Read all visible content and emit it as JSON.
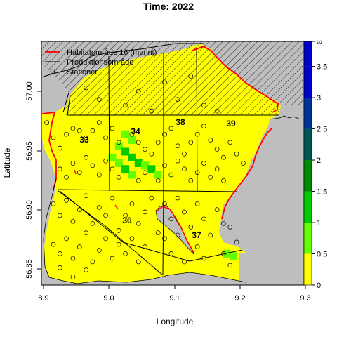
{
  "title": "Time: 2022",
  "xlabel": "Longitude",
  "ylabel": "Latitude",
  "x_ticks": [
    "8.9",
    "9.0",
    "9.1",
    "9.2",
    "9.3"
  ],
  "y_ticks": [
    "56.85",
    "56.90",
    "56.95",
    "57.00"
  ],
  "colorbar_ticks": [
    "0",
    "0.5",
    "1",
    "1.5",
    "2",
    "2.5",
    "3",
    "3.5",
    "∞"
  ],
  "legend": {
    "habitat": "Habitatområde 16 (marint)",
    "production": "Produktionsområde",
    "stations": "Stationer"
  },
  "areas": [
    "33",
    "34",
    "36",
    "37",
    "38",
    "39"
  ],
  "colors": {
    "land": "#bebebe",
    "water": "#ffff00",
    "habitat_line": "#ff0000",
    "production_line": "#000000",
    "scale": [
      "#ffff00",
      "#66ff00",
      "#00cc00",
      "#008800",
      "#005555",
      "#003399",
      "#0000cc",
      "#0000cc"
    ]
  },
  "chart_data": {
    "type": "heatmap",
    "xlim": [
      8.9,
      9.3
    ],
    "ylim": [
      56.835,
      57.045
    ],
    "colorbar_range": [
      0,
      3.9
    ],
    "high_density_cells": [
      {
        "lon": 9.025,
        "lat": 56.965,
        "value": 0.8
      },
      {
        "lon": 9.035,
        "lat": 56.96,
        "value": 0.8
      },
      {
        "lon": 9.015,
        "lat": 56.955,
        "value": 0.8
      },
      {
        "lon": 9.025,
        "lat": 56.95,
        "value": 1.3
      },
      {
        "lon": 9.035,
        "lat": 56.945,
        "value": 1.3
      },
      {
        "lon": 9.045,
        "lat": 56.94,
        "value": 1.3
      },
      {
        "lon": 9.055,
        "lat": 56.938,
        "value": 0.8
      },
      {
        "lon": 9.065,
        "lat": 56.935,
        "value": 1.3
      },
      {
        "lon": 9.005,
        "lat": 56.945,
        "value": 0.8
      },
      {
        "lon": 9.015,
        "lat": 56.94,
        "value": 0.8
      },
      {
        "lon": 9.035,
        "lat": 56.93,
        "value": 0.8
      },
      {
        "lon": 9.025,
        "lat": 56.935,
        "value": 1.3
      },
      {
        "lon": 9.075,
        "lat": 56.93,
        "value": 0.8
      },
      {
        "lon": 9.18,
        "lat": 56.862,
        "value": 0.8
      },
      {
        "lon": 9.19,
        "lat": 56.86,
        "value": 0.8
      }
    ],
    "stations": [
      [
        8.905,
        56.975
      ],
      [
        8.915,
        56.962
      ],
      [
        8.925,
        56.953
      ],
      [
        8.935,
        56.965
      ],
      [
        8.945,
        56.97
      ],
      [
        8.955,
        56.968
      ],
      [
        8.965,
        56.962
      ],
      [
        8.975,
        56.968
      ],
      [
        8.985,
        56.975
      ],
      [
        8.995,
        56.962
      ],
      [
        9.005,
        56.97
      ],
      [
        9.015,
        56.958
      ],
      [
        9.035,
        56.965
      ],
      [
        9.045,
        56.958
      ],
      [
        9.055,
        56.952
      ],
      [
        9.065,
        56.948
      ],
      [
        9.075,
        56.958
      ],
      [
        9.085,
        56.965
      ],
      [
        9.095,
        56.97
      ],
      [
        9.105,
        56.955
      ],
      [
        9.115,
        56.948
      ],
      [
        9.125,
        56.958
      ],
      [
        9.135,
        56.965
      ],
      [
        9.145,
        56.972
      ],
      [
        9.155,
        56.96
      ],
      [
        9.165,
        56.952
      ],
      [
        9.175,
        56.945
      ],
      [
        9.185,
        56.958
      ],
      [
        9.195,
        56.948
      ],
      [
        9.205,
        56.94
      ],
      [
        8.925,
        56.935
      ],
      [
        8.935,
        56.928
      ],
      [
        8.945,
        56.94
      ],
      [
        8.955,
        56.932
      ],
      [
        8.965,
        56.945
      ],
      [
        8.975,
        56.938
      ],
      [
        8.985,
        56.93
      ],
      [
        8.995,
        56.942
      ],
      [
        9.005,
        56.935
      ],
      [
        9.015,
        56.928
      ],
      [
        9.045,
        56.925
      ],
      [
        9.055,
        56.932
      ],
      [
        9.075,
        56.925
      ],
      [
        9.085,
        56.938
      ],
      [
        9.095,
        56.93
      ],
      [
        9.105,
        56.942
      ],
      [
        9.115,
        56.935
      ],
      [
        9.125,
        56.925
      ],
      [
        9.135,
        56.932
      ],
      [
        9.145,
        56.94
      ],
      [
        9.155,
        56.928
      ],
      [
        9.165,
        56.935
      ],
      [
        9.175,
        56.925
      ],
      [
        8.915,
        56.905
      ],
      [
        8.925,
        56.895
      ],
      [
        8.935,
        56.908
      ],
      [
        8.945,
        56.89
      ],
      [
        8.955,
        56.9
      ],
      [
        8.965,
        56.912
      ],
      [
        8.975,
        56.888
      ],
      [
        8.985,
        56.902
      ],
      [
        8.995,
        56.895
      ],
      [
        9.005,
        56.91
      ],
      [
        9.015,
        56.882
      ],
      [
        9.025,
        56.895
      ],
      [
        9.035,
        56.905
      ],
      [
        9.045,
        56.888
      ],
      [
        9.055,
        56.898
      ],
      [
        9.065,
        56.91
      ],
      [
        9.075,
        56.88
      ],
      [
        8.915,
        56.87
      ],
      [
        8.925,
        56.862
      ],
      [
        8.935,
        56.875
      ],
      [
        8.945,
        56.858
      ],
      [
        8.955,
        56.868
      ],
      [
        8.965,
        56.88
      ],
      [
        8.975,
        56.855
      ],
      [
        8.985,
        56.865
      ],
      [
        8.995,
        56.875
      ],
      [
        9.005,
        56.858
      ],
      [
        9.015,
        56.87
      ],
      [
        9.025,
        56.862
      ],
      [
        9.035,
        56.875
      ],
      [
        9.045,
        56.855
      ],
      [
        9.055,
        56.868
      ],
      [
        9.085,
        56.905
      ],
      [
        9.095,
        56.892
      ],
      [
        9.105,
        56.91
      ],
      [
        9.115,
        56.898
      ],
      [
        9.125,
        56.885
      ],
      [
        9.135,
        56.905
      ],
      [
        9.145,
        56.892
      ],
      [
        9.155,
        56.878
      ],
      [
        9.165,
        56.9
      ],
      [
        9.175,
        56.888
      ],
      [
        9.085,
        56.875
      ],
      [
        9.095,
        56.862
      ],
      [
        9.105,
        56.878
      ],
      [
        9.115,
        56.855
      ],
      [
        9.135,
        56.868
      ],
      [
        9.145,
        56.858
      ],
      [
        9.175,
        56.862
      ],
      [
        9.185,
        56.852
      ],
      [
        9.195,
        56.872
      ],
      [
        9.185,
        56.885
      ],
      [
        9.025,
        56.99
      ],
      [
        9.045,
        57.002
      ],
      [
        9.065,
        56.985
      ],
      [
        9.085,
        57.01
      ],
      [
        9.105,
        56.995
      ],
      [
        9.125,
        57.015
      ],
      [
        9.145,
        56.99
      ],
      [
        8.985,
        56.995
      ],
      [
        8.965,
        57.005
      ],
      [
        9.165,
        56.985
      ],
      [
        8.945,
        56.842
      ],
      [
        8.965,
        56.848
      ],
      [
        8.925,
        56.85
      ]
    ]
  }
}
